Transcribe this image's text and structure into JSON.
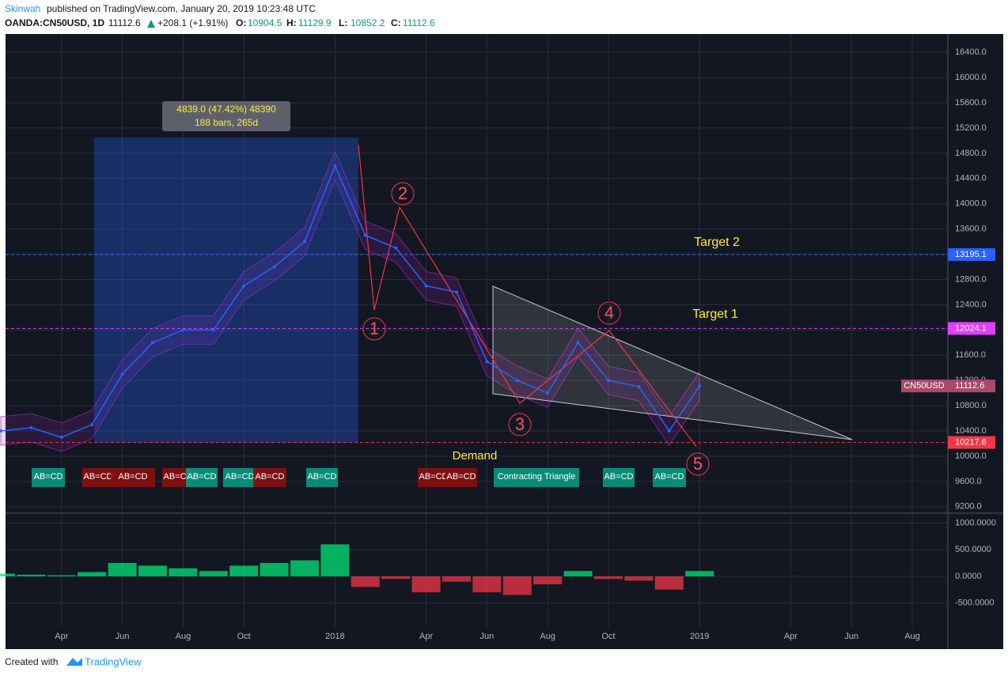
{
  "header": {
    "publisher": "Skinwah",
    "published": "published on TradingView.com, January 20, 2019 10:23:48 UTC",
    "symbol": "OANDA:CN50USD, 1D",
    "last": 11112.6,
    "change": "+208.1 (+1.91%)",
    "ohlc": [
      {
        "key": "O:",
        "value": 10904.5
      },
      {
        "key": "H:",
        "value": 11129.9
      },
      {
        "key": "L:",
        "value": 10852.2
      },
      {
        "key": "C:",
        "value": 11112.6
      }
    ]
  },
  "chart_data": [
    {
      "type": "line",
      "categories": [
        null,
        null,
        "Apr",
        null,
        "Jun",
        null,
        "Aug",
        null,
        "Oct",
        null,
        null,
        "2018",
        null,
        null,
        "Apr",
        null,
        "Jun",
        null,
        "Aug",
        null,
        "Oct",
        null,
        null,
        "2019",
        null,
        null,
        "Apr",
        null,
        "Jun",
        null,
        "Aug"
      ],
      "series": [
        {
          "name": "CN50USD",
          "color": "#2962ff",
          "values": [
            10400,
            10450,
            10300,
            10500,
            11300,
            11800,
            12000,
            12000,
            12700,
            13000,
            13400,
            14600,
            13500,
            13300,
            12700,
            12600,
            11500,
            11200,
            11000,
            11800,
            11200,
            11100,
            10400,
            11112.6,
            null,
            null,
            null,
            null,
            null,
            null,
            null
          ]
        }
      ],
      "ylim": [
        9110,
        16690
      ],
      "yticks": [
        {
          "value": 9200,
          "label": "9200.0"
        },
        {
          "value": 9600,
          "label": "9600.0"
        },
        {
          "value": 10000,
          "label": "10000.0"
        },
        {
          "value": 10400,
          "label": "10400.0"
        },
        {
          "value": 10800,
          "label": "10800.0"
        },
        {
          "value": 11200,
          "label": "11200.0"
        },
        {
          "value": 11600,
          "label": "11600.0"
        },
        {
          "value": 12000,
          "label": "12000.0"
        },
        {
          "value": 12400,
          "label": "12400.0"
        },
        {
          "value": 12800,
          "label": "12800.0"
        },
        {
          "value": 13200,
          "label": "13200.0"
        },
        {
          "value": 13600,
          "label": "13600.0"
        },
        {
          "value": 14000,
          "label": "14000.0"
        },
        {
          "value": 14400,
          "label": "14400.0"
        },
        {
          "value": 14800,
          "label": "14800.0"
        },
        {
          "value": 15200,
          "label": "15200.0"
        },
        {
          "value": 15600,
          "label": "15600.0"
        },
        {
          "value": 16000,
          "label": "16000.0"
        },
        {
          "value": 16400,
          "label": "16400.0"
        }
      ],
      "grid": true,
      "levels": [
        {
          "label": "Target 2",
          "value": 13195.1,
          "color": "#2962ff"
        },
        {
          "label": "Target 1",
          "value": 12024.1,
          "color": "#e040fb"
        },
        {
          "value": 10217.6,
          "color": "#f23645"
        }
      ]
    },
    {
      "type": "bar",
      "values": [
        50,
        30,
        20,
        80,
        250,
        200,
        150,
        100,
        200,
        250,
        300,
        600,
        -200,
        -50,
        -300,
        -100,
        -300,
        -350,
        -150,
        100,
        -50,
        -80,
        -250,
        100,
        null,
        null,
        null,
        null,
        null,
        null,
        null
      ],
      "color": "#00e676",
      "negative_color": "#f23645",
      "ylim": [
        -950,
        1170
      ],
      "yticks": [
        {
          "value": 1000,
          "label": "1000.0000"
        },
        {
          "value": 500,
          "label": "500.0000"
        },
        {
          "value": 0,
          "label": "0.0000"
        },
        {
          "value": -500,
          "label": "-500.0000"
        }
      ],
      "grid": true
    }
  ],
  "annotations": {
    "measure": {
      "line1": "4839.0 (47.42%) 48390",
      "line2": "188 bars, 265d"
    },
    "waves": [
      "1",
      "2",
      "3",
      "4",
      "5"
    ],
    "zone": "Demand",
    "patterns": [
      {
        "label": "AB=CD",
        "color": "#089981"
      },
      {
        "label": "AB=CD",
        "color": "#880e0e"
      },
      {
        "label": "AB=CD",
        "color": "#880e0e"
      },
      {
        "label": "AB=CD",
        "color": "#880e0e"
      },
      {
        "label": "AB=CD",
        "color": "#089981"
      },
      {
        "label": "AB=CD",
        "color": "#089981"
      },
      {
        "label": "AB=CD",
        "color": "#880e0e"
      },
      {
        "label": "AB=CD",
        "color": "#089981"
      },
      {
        "label": "AB=CD",
        "color": "#880e0e"
      },
      {
        "label": "AB=CD",
        "color": "#880e0e"
      },
      {
        "label": "Contracting Triangle",
        "color": "#089981"
      },
      {
        "label": "AB=CD",
        "color": "#089981"
      },
      {
        "label": "AB=CD",
        "color": "#089981"
      }
    ]
  },
  "footer": {
    "created": "Created with",
    "brand": "TradingView"
  }
}
